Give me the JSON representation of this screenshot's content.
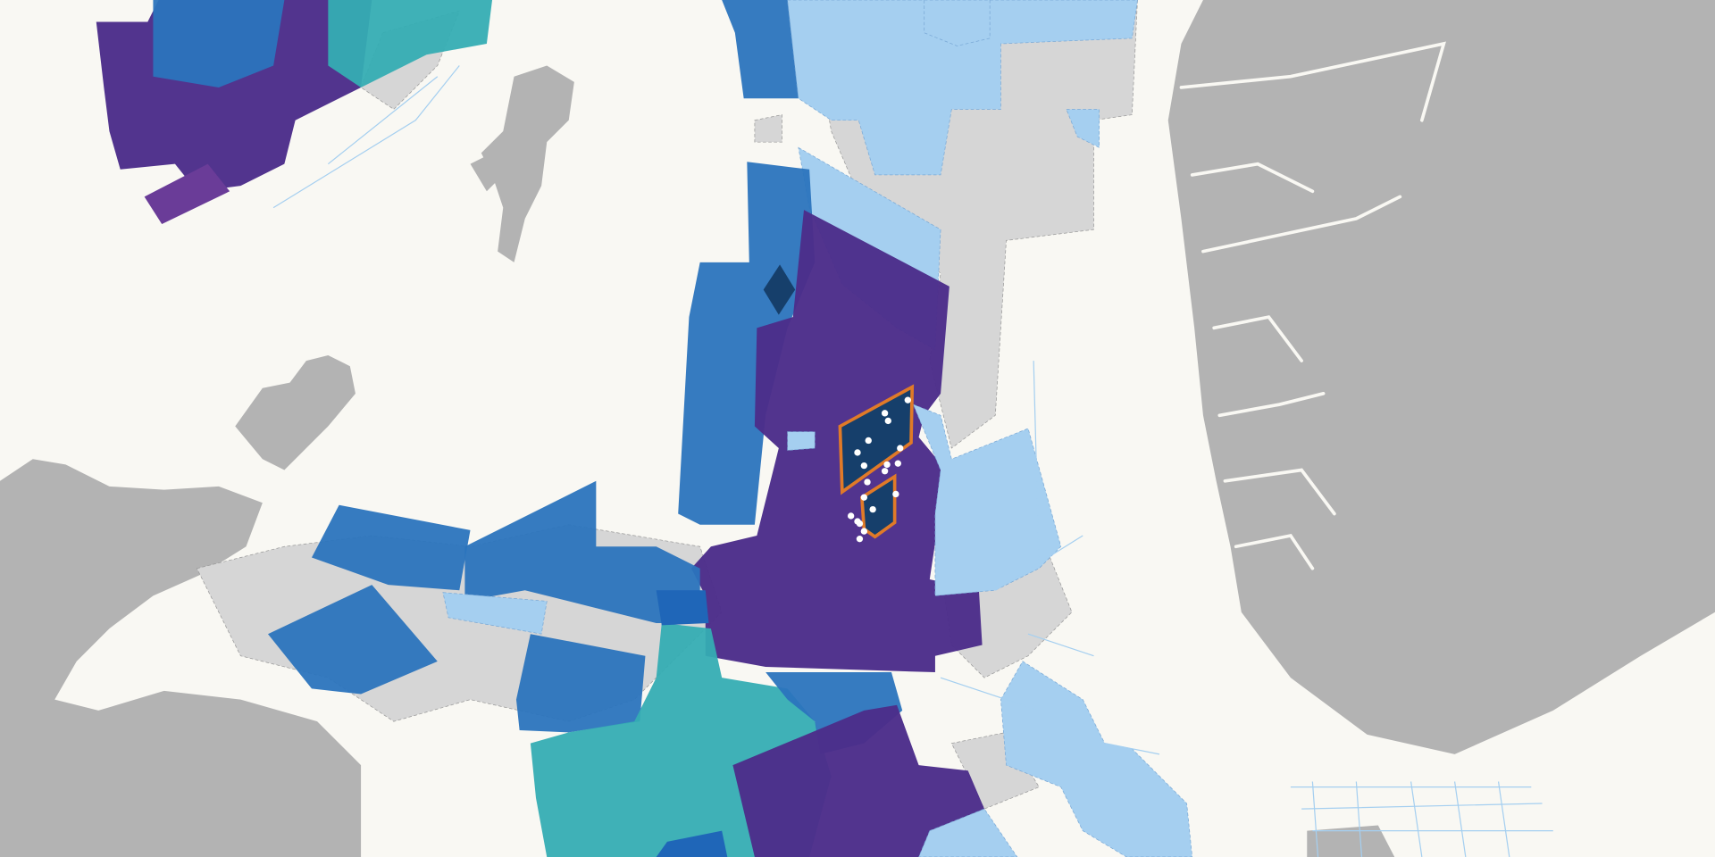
{
  "map": {
    "colors": {
      "sea": "#f9f8f3",
      "land": "#b3b3b3",
      "licence_grey": "#d6d6d6",
      "purple": "#4c2d8a",
      "blue": "#2b74bd",
      "light_blue": "#a5cff0",
      "teal": "#35adb3",
      "selected_fill": "#163f6b",
      "selected_outline": "#e07a28",
      "well_marker": "#ffffff"
    },
    "selected_areas": 2,
    "well_markers": 22
  }
}
